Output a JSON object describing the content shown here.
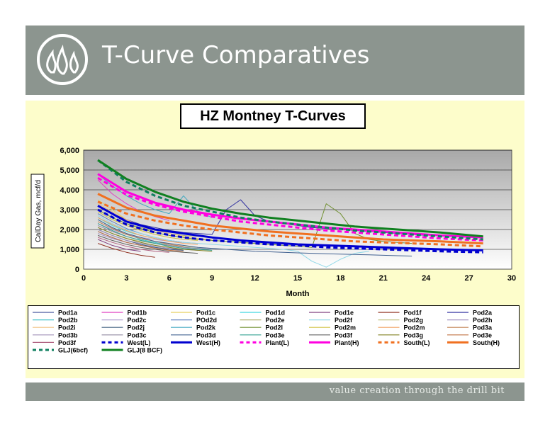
{
  "slide": {
    "title": "T-Curve Comparatives",
    "tagline": "value creation through the drill bit",
    "logo_icon": "three-flames-logo-icon"
  },
  "colors": {
    "header": "#8c958f",
    "panel": "#fdfdcb",
    "plot_bg_top": "#a8a8a8",
    "plot_bg_bottom": "#ffffff"
  },
  "chart_data": {
    "type": "line",
    "title": "HZ Montney T-Curves",
    "xlabel": "Month",
    "ylabel": "CalDay Gas, mcf/d",
    "xlim": [
      0,
      30
    ],
    "ylim": [
      0,
      6000
    ],
    "xticks": [
      0,
      3,
      6,
      9,
      12,
      15,
      18,
      21,
      24,
      27,
      30
    ],
    "yticks": [
      0,
      1000,
      2000,
      3000,
      4000,
      5000,
      6000
    ],
    "ytick_labels": [
      "0",
      "1,000",
      "2,000",
      "3,000",
      "4,000",
      "5,000",
      "6,000"
    ],
    "grid": "horizontal",
    "legend_position": "bottom",
    "series": [
      {
        "name": "Pod1a",
        "color": "#4a5aa0",
        "style": "thin",
        "x": [
          1,
          2,
          3,
          4,
          5
        ],
        "y": [
          1900,
          1600,
          1350,
          1200,
          1100
        ]
      },
      {
        "name": "Pod1b",
        "color": "#e040c0",
        "style": "thin",
        "x": [
          1,
          2,
          3,
          4,
          5,
          6
        ],
        "y": [
          4500,
          3800,
          3300,
          2900,
          2650,
          2450
        ]
      },
      {
        "name": "Pod1c",
        "color": "#e8d060",
        "style": "thin",
        "x": [
          1,
          2,
          3,
          4,
          5
        ],
        "y": [
          3500,
          3000,
          2500,
          2200,
          2000
        ]
      },
      {
        "name": "Pod1d",
        "color": "#40d8e0",
        "style": "thin",
        "x": [
          1,
          2,
          3,
          4,
          5
        ],
        "y": [
          2600,
          2200,
          1900,
          1700,
          1550
        ]
      },
      {
        "name": "Pod1e",
        "color": "#804080",
        "style": "thin",
        "x": [
          1,
          2,
          3,
          4
        ],
        "y": [
          1500,
          1200,
          1000,
          900
        ]
      },
      {
        "name": "Pod1f",
        "color": "#903020",
        "style": "thin",
        "x": [
          1,
          2,
          3,
          4,
          5
        ],
        "y": [
          1300,
          1050,
          850,
          700,
          600
        ]
      },
      {
        "name": "Pod2a",
        "color": "#3030a0",
        "style": "thin",
        "x": [
          1,
          2,
          3,
          4,
          5,
          6,
          7,
          8,
          9,
          10,
          11,
          12,
          13,
          14,
          15,
          16,
          17,
          18,
          19,
          20,
          21,
          22,
          23,
          24
        ],
        "y": [
          3200,
          2800,
          2500,
          2250,
          2100,
          1950,
          1850,
          1800,
          1750,
          3000,
          3500,
          2700,
          2400,
          2300,
          2200,
          2100,
          2050,
          2000,
          1950,
          1900,
          1850,
          1800,
          1750,
          1700
        ]
      },
      {
        "name": "Pod2b",
        "color": "#40c0c8",
        "style": "thin",
        "x": [
          1,
          2,
          3,
          4,
          5,
          6,
          7,
          8,
          9
        ],
        "y": [
          2500,
          2100,
          1800,
          1500,
          1350,
          1200,
          1100,
          1050,
          1000
        ]
      },
      {
        "name": "Pod2c",
        "color": "#b0a0d0",
        "style": "thin",
        "x": [
          1,
          2,
          3,
          4,
          5,
          6,
          7,
          8
        ],
        "y": [
          2300,
          2000,
          1750,
          1600,
          1500,
          1400,
          1350,
          1300
        ]
      },
      {
        "name": "POd2d",
        "color": "#6080c0",
        "style": "thin",
        "x": [
          1,
          2,
          3,
          4,
          5,
          6,
          7
        ],
        "y": [
          2800,
          2400,
          2050,
          1800,
          1600,
          1450,
          1350
        ]
      },
      {
        "name": "Pod2e",
        "color": "#b0b070",
        "style": "thin",
        "x": [
          1,
          2,
          3,
          4,
          5,
          6,
          7,
          8,
          9,
          10
        ],
        "y": [
          3000,
          2600,
          2300,
          2100,
          1950,
          1800,
          1700,
          1650,
          1600,
          1550
        ]
      },
      {
        "name": "Pod2f",
        "color": "#90d8e8",
        "style": "thin",
        "x": [
          1,
          2,
          3,
          4,
          5,
          6,
          7,
          8,
          9,
          10,
          11,
          12,
          13,
          14,
          15,
          16,
          17,
          18,
          19,
          20
        ],
        "y": [
          2700,
          2300,
          2000,
          1800,
          1600,
          1450,
          1350,
          1300,
          1250,
          1200,
          1150,
          1100,
          1050,
          1000,
          900,
          400,
          100,
          500,
          800,
          900
        ]
      },
      {
        "name": "Pod2g",
        "color": "#c0c080",
        "style": "thin",
        "x": [
          1,
          2,
          3,
          4,
          5,
          6,
          7,
          8
        ],
        "y": [
          2100,
          1800,
          1550,
          1400,
          1300,
          1200,
          1150,
          1100
        ]
      },
      {
        "name": "Pod2h",
        "color": "#a090c0",
        "style": "thin",
        "x": [
          1,
          2,
          3,
          4,
          5,
          6,
          7
        ],
        "y": [
          1800,
          1550,
          1350,
          1200,
          1100,
          1000,
          950
        ]
      },
      {
        "name": "Pod2i",
        "color": "#f0c080",
        "style": "thin",
        "x": [
          1,
          2,
          3,
          4,
          5,
          6,
          7,
          8,
          9
        ],
        "y": [
          3300,
          2900,
          2500,
          2200,
          1950,
          1800,
          1650,
          1550,
          1500
        ]
      },
      {
        "name": "Pod2j",
        "color": "#406080",
        "style": "thin",
        "x": [
          1,
          2,
          3,
          4,
          5,
          6,
          7
        ],
        "y": [
          2000,
          1700,
          1450,
          1250,
          1100,
          1000,
          950
        ]
      },
      {
        "name": "Pod2k",
        "color": "#40a8c0",
        "style": "thin",
        "x": [
          1,
          2,
          3,
          4,
          5,
          6,
          7,
          8,
          9
        ],
        "y": [
          4800,
          4200,
          3700,
          3300,
          3000,
          2800,
          3700,
          2900,
          2600
        ]
      },
      {
        "name": "Pod2l",
        "color": "#709030",
        "style": "thin",
        "x": [
          1,
          2,
          3,
          4,
          5,
          6,
          7,
          8,
          9,
          10,
          11,
          12,
          13,
          14,
          15,
          16,
          17,
          18,
          19,
          20,
          21,
          22,
          23
        ],
        "y": [
          3000,
          2600,
          2300,
          2050,
          1850,
          1700,
          1600,
          1500,
          1450,
          1400,
          1350,
          1300,
          1250,
          1200,
          1150,
          1100,
          3300,
          2800,
          1800,
          1500,
          1400,
          1350,
          1300
        ]
      },
      {
        "name": "Pod2m",
        "color": "#d0c040",
        "style": "thin",
        "x": [
          1,
          2,
          3,
          4,
          5,
          6,
          7,
          8
        ],
        "y": [
          2900,
          2500,
          2200,
          1950,
          1750,
          1600,
          1500,
          1450
        ]
      },
      {
        "name": "Pod2m",
        "color": "#f0a060",
        "style": "thin",
        "x": [
          1,
          2,
          3,
          4,
          5,
          6,
          7,
          8
        ],
        "y": [
          2600,
          2250,
          1950,
          1700,
          1550,
          1400,
          1300,
          1250
        ]
      },
      {
        "name": "Pod3a",
        "color": "#c08050",
        "style": "thin",
        "x": [
          1,
          2,
          3,
          4,
          5,
          6,
          7
        ],
        "y": [
          2400,
          2050,
          1750,
          1550,
          1400,
          1250,
          1150
        ]
      },
      {
        "name": "Pod3b",
        "color": "#a090b8",
        "style": "thin",
        "x": [
          1,
          2,
          3,
          4,
          5,
          6,
          7,
          8
        ],
        "y": [
          2000,
          1700,
          1450,
          1300,
          1150,
          1050,
          1000,
          950
        ]
      },
      {
        "name": "Pod3c",
        "color": "#9088a0",
        "style": "thin",
        "x": [
          1,
          2,
          3,
          4,
          5,
          6,
          7,
          8,
          9
        ],
        "y": [
          2200,
          1900,
          1650,
          1450,
          1300,
          1200,
          1100,
          1050,
          1000
        ]
      },
      {
        "name": "Pod3d",
        "color": "#406090",
        "style": "thin",
        "x": [
          1,
          2,
          3,
          4,
          5,
          6,
          7,
          8,
          9,
          10,
          11,
          12,
          13,
          14,
          15,
          16,
          17,
          18,
          19,
          20,
          21,
          22,
          23
        ],
        "y": [
          2500,
          2100,
          1800,
          1600,
          1400,
          1300,
          1200,
          1100,
          1050,
          1000,
          950,
          900,
          880,
          850,
          820,
          800,
          780,
          760,
          740,
          720,
          700,
          680,
          660
        ]
      },
      {
        "name": "Pod3e",
        "color": "#30a090",
        "style": "thin",
        "x": [
          1,
          2,
          3,
          4,
          5,
          6,
          7,
          8,
          9
        ],
        "y": [
          2300,
          1950,
          1650,
          1450,
          1300,
          1150,
          1050,
          1000,
          950
        ]
      },
      {
        "name": "Pod3f",
        "color": "#606060",
        "style": "thin",
        "x": [
          1,
          2,
          3,
          4,
          5,
          6,
          7,
          8
        ],
        "y": [
          1700,
          1450,
          1250,
          1100,
          1000,
          900,
          850,
          800
        ]
      },
      {
        "name": "Pod3g",
        "color": "#808020",
        "style": "thin",
        "x": [
          1,
          2,
          3,
          4,
          5,
          6,
          7,
          8,
          9
        ],
        "y": [
          2100,
          1800,
          1550,
          1350,
          1200,
          1100,
          1000,
          950,
          900
        ]
      },
      {
        "name": "Pod3e",
        "color": "#c07040",
        "style": "thin",
        "x": [
          1,
          2,
          3,
          4,
          5,
          6,
          7
        ],
        "y": [
          1900,
          1600,
          1350,
          1200,
          1050,
          950,
          900
        ]
      },
      {
        "name": "Pod3f",
        "color": "#b06080",
        "style": "thin",
        "x": [
          1,
          2,
          3,
          4,
          5,
          6
        ],
        "y": [
          1600,
          1350,
          1150,
          1000,
          900,
          850
        ]
      },
      {
        "name": "West(L)",
        "color": "#0000d0",
        "style": "dashed",
        "x": [
          1,
          3,
          5,
          7,
          9,
          11,
          13,
          15,
          17,
          19,
          21,
          23,
          25,
          28
        ],
        "y": [
          3000,
          2250,
          1850,
          1600,
          1450,
          1350,
          1250,
          1200,
          1100,
          1050,
          1000,
          950,
          900,
          850
        ]
      },
      {
        "name": "West(H)",
        "color": "#0000d0",
        "style": "solid",
        "x": [
          1,
          3,
          5,
          7,
          9,
          11,
          13,
          15,
          17,
          19,
          21,
          23,
          25,
          28
        ],
        "y": [
          3200,
          2400,
          2000,
          1800,
          1600,
          1450,
          1350,
          1250,
          1200,
          1150,
          1100,
          1050,
          1000,
          950
        ]
      },
      {
        "name": "Plant(L)",
        "color": "#ff00e0",
        "style": "dashed",
        "x": [
          1,
          3,
          5,
          7,
          9,
          11,
          13,
          15,
          17,
          19,
          21,
          23,
          25,
          28
        ],
        "y": [
          4600,
          3750,
          3250,
          2900,
          2650,
          2400,
          2250,
          2100,
          1950,
          1850,
          1750,
          1650,
          1550,
          1450
        ]
      },
      {
        "name": "Plant(H)",
        "color": "#ff00e0",
        "style": "solid",
        "x": [
          1,
          3,
          5,
          7,
          9,
          11,
          13,
          15,
          17,
          19,
          21,
          23,
          25,
          28
        ],
        "y": [
          4800,
          3900,
          3350,
          3000,
          2750,
          2550,
          2400,
          2250,
          2100,
          2000,
          1900,
          1800,
          1700,
          1600
        ]
      },
      {
        "name": "South(L)",
        "color": "#f07020",
        "style": "dashed",
        "x": [
          1,
          3,
          5,
          7,
          9,
          11,
          13,
          15,
          17,
          19,
          21,
          23,
          25,
          28
        ],
        "y": [
          3400,
          2800,
          2450,
          2200,
          2000,
          1850,
          1700,
          1600,
          1500,
          1400,
          1350,
          1300,
          1250,
          1150
        ]
      },
      {
        "name": "South(H)",
        "color": "#f07020",
        "style": "solid",
        "x": [
          1,
          3,
          5,
          7,
          9,
          11,
          13,
          15,
          17,
          19,
          21,
          23,
          25,
          28
        ],
        "y": [
          3800,
          3100,
          2700,
          2450,
          2200,
          2050,
          1900,
          1800,
          1700,
          1600,
          1500,
          1450,
          1400,
          1300
        ]
      },
      {
        "name": "GLJ(6bcf)",
        "color": "#108060",
        "style": "dashed",
        "x": [
          1,
          3,
          5,
          7,
          9,
          11,
          13,
          15,
          17,
          19,
          21,
          23,
          25,
          28
        ],
        "y": [
          5500,
          4400,
          3700,
          3200,
          2900,
          2600,
          2400,
          2250,
          2100,
          1950,
          1850,
          1750,
          1650,
          1500
        ]
      },
      {
        "name": "GLJ(8 BCF)",
        "color": "#108020",
        "style": "solid",
        "x": [
          1,
          3,
          5,
          7,
          9,
          11,
          13,
          15,
          17,
          19,
          21,
          23,
          25,
          28
        ],
        "y": [
          5500,
          4550,
          3900,
          3400,
          3050,
          2800,
          2600,
          2450,
          2300,
          2150,
          2050,
          1950,
          1850,
          1650
        ]
      }
    ]
  }
}
